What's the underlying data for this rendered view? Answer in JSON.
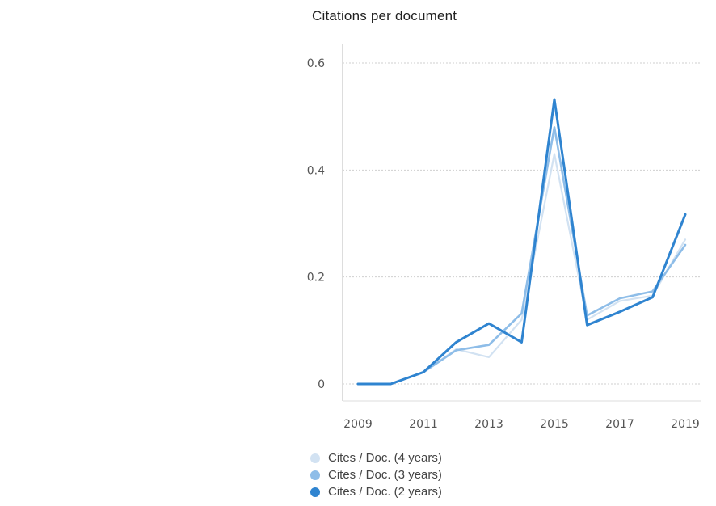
{
  "title": "Citations per document",
  "chart_data": {
    "type": "line",
    "title": "Citations per document",
    "xlabel": "",
    "ylabel": "",
    "x": [
      2009,
      2010,
      2011,
      2012,
      2013,
      2014,
      2015,
      2016,
      2017,
      2018,
      2019
    ],
    "x_tick_labels": [
      "2009",
      "2011",
      "2013",
      "2015",
      "2017",
      "2019"
    ],
    "x_tick_values": [
      2009,
      2011,
      2013,
      2015,
      2017,
      2019
    ],
    "y_tick_labels": [
      "0",
      "0.2",
      "0.4",
      "0.6"
    ],
    "y_tick_values": [
      0,
      0.2,
      0.4,
      0.6
    ],
    "xlim": [
      2009,
      2019
    ],
    "ylim": [
      0,
      0.6
    ],
    "grid": true,
    "legend_position": "bottom-left",
    "series": [
      {
        "name": "Cites / Doc. (4 years)",
        "color": "#d2e2f2",
        "values": [
          0,
          0,
          0.022,
          0.065,
          0.05,
          0.12,
          0.43,
          0.12,
          0.155,
          0.165,
          0.27
        ]
      },
      {
        "name": "Cites / Doc. (3 years)",
        "color": "#8ebde8",
        "values": [
          0,
          0,
          0.022,
          0.063,
          0.073,
          0.132,
          0.48,
          0.128,
          0.16,
          0.173,
          0.26
        ]
      },
      {
        "name": "Cites / Doc. (2 years)",
        "color": "#2f84d0",
        "values": [
          0,
          0,
          0.022,
          0.078,
          0.113,
          0.078,
          0.532,
          0.11,
          0.135,
          0.162,
          0.317
        ]
      }
    ]
  }
}
